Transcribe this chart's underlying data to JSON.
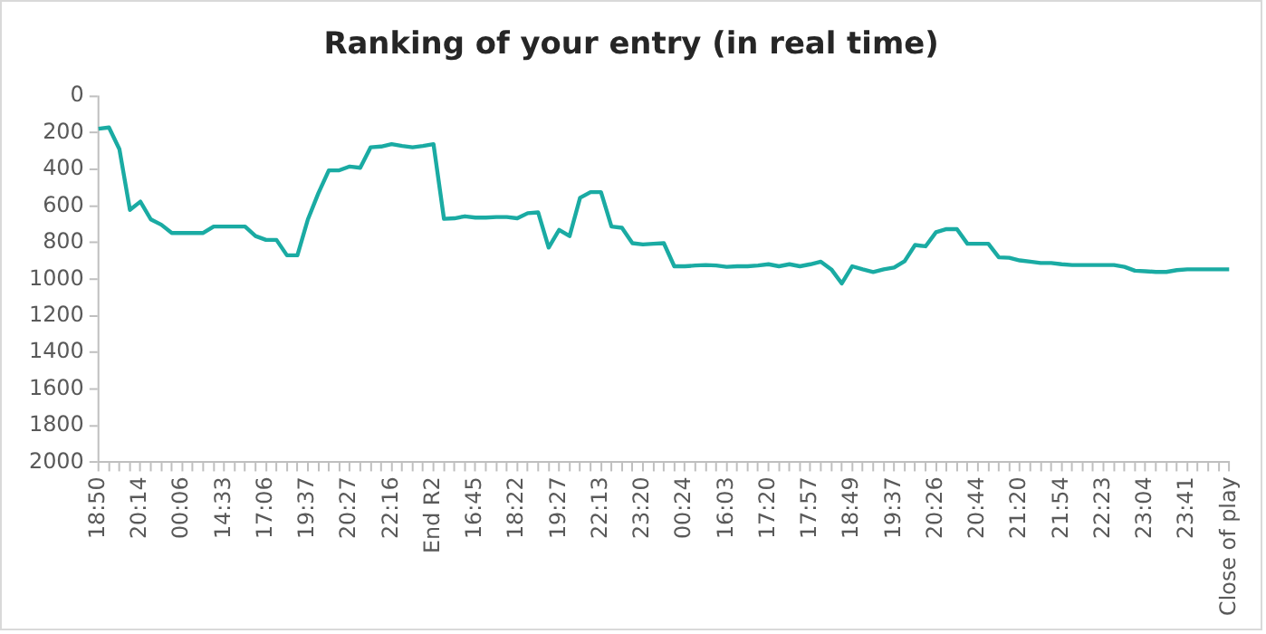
{
  "chart_data": {
    "type": "line",
    "title": "Ranking of your entry (in real time)",
    "categories": [
      "18:50",
      null,
      null,
      null,
      "20:14",
      null,
      null,
      null,
      "00:06",
      null,
      null,
      null,
      "14:33",
      null,
      null,
      null,
      "17:06",
      null,
      null,
      null,
      "19:37",
      null,
      null,
      null,
      "20:27",
      null,
      null,
      null,
      "22:16",
      null,
      null,
      null,
      "End R2",
      null,
      null,
      null,
      "16:45",
      null,
      null,
      null,
      "18:22",
      null,
      null,
      null,
      "19:27",
      null,
      null,
      null,
      "22:13",
      null,
      null,
      null,
      "23:20",
      null,
      null,
      null,
      "00:24",
      null,
      null,
      null,
      "16:03",
      null,
      null,
      null,
      "17:20",
      null,
      null,
      null,
      "17:57",
      null,
      null,
      null,
      "18:49",
      null,
      null,
      null,
      "19:37",
      null,
      null,
      null,
      "20:26",
      null,
      null,
      null,
      "20:44",
      null,
      null,
      null,
      "21:20",
      null,
      null,
      null,
      "21:54",
      null,
      null,
      null,
      "22:23",
      null,
      null,
      null,
      "23:04",
      null,
      null,
      null,
      "23:41",
      null,
      null,
      null,
      "Close of play"
    ],
    "values": [
      178,
      171,
      290,
      621,
      576,
      673,
      702,
      747,
      747,
      747,
      747,
      712,
      712,
      712,
      712,
      764,
      785,
      785,
      869,
      869,
      673,
      530,
      405,
      405,
      384,
      391,
      279,
      275,
      262,
      272,
      279,
      272,
      262,
      670,
      667,
      656,
      663,
      663,
      660,
      660,
      667,
      639,
      635,
      827,
      730,
      764,
      555,
      524,
      524,
      712,
      719,
      803,
      810,
      806,
      803,
      929,
      929,
      925,
      922,
      925,
      932,
      929,
      929,
      925,
      918,
      929,
      918,
      929,
      918,
      904,
      946,
      1023,
      929,
      946,
      960,
      946,
      936,
      901,
      813,
      820,
      743,
      726,
      726,
      806,
      806,
      806,
      880,
      883,
      897,
      904,
      911,
      911,
      918,
      922,
      922,
      922,
      922,
      922,
      932,
      953,
      956,
      960,
      960,
      950,
      946,
      946,
      946,
      946,
      946
    ],
    "color": "#1aaba3",
    "ylim": [
      2000,
      0
    ],
    "yticks": [
      0,
      200,
      400,
      600,
      800,
      1000,
      1200,
      1400,
      1600,
      1800,
      2000
    ],
    "grid": false,
    "marker": "none"
  }
}
